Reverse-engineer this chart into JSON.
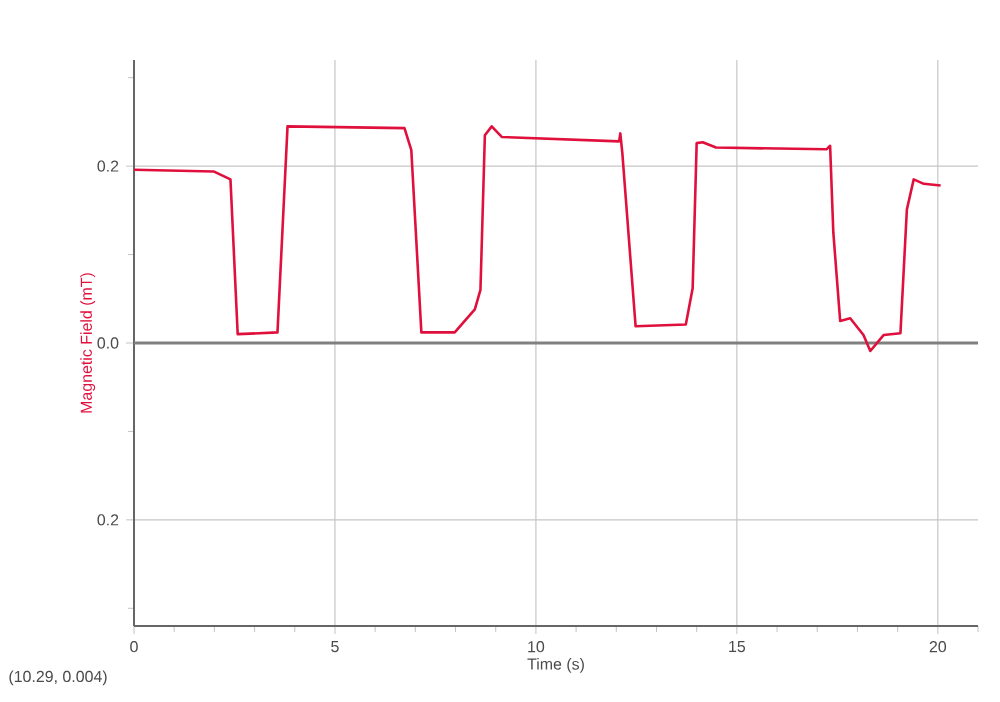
{
  "chart_data": {
    "type": "line",
    "xlabel": "Time (s)",
    "ylabel": "Magnetic Field (mT)",
    "annotations": [
      "(10.29, 0.004)"
    ],
    "xlim": [
      0,
      21
    ],
    "ylim": [
      -0.32,
      0.32
    ],
    "xticks": [
      0,
      {
        "value": 1,
        "label": null
      },
      {
        "value": 2,
        "label": null
      },
      {
        "value": 3,
        "label": null
      },
      {
        "value": 4,
        "label": null
      },
      5,
      {
        "value": 6,
        "label": null
      },
      {
        "value": 7,
        "label": null
      },
      {
        "value": 8,
        "label": null
      },
      {
        "value": 9,
        "label": null
      },
      10,
      {
        "value": 11,
        "label": null
      },
      {
        "value": 12,
        "label": null
      },
      {
        "value": 13,
        "label": null
      },
      {
        "value": 14,
        "label": null
      },
      15,
      {
        "value": 16,
        "label": null
      },
      {
        "value": 17,
        "label": null
      },
      {
        "value": 18,
        "label": null
      },
      {
        "value": 19,
        "label": null
      },
      20,
      {
        "value": 21,
        "label": null
      }
    ],
    "yticks": [
      {
        "value": -0.3,
        "label": null
      },
      {
        "value": -0.2,
        "label": "0.2"
      },
      {
        "value": -0.1,
        "label": null
      },
      {
        "value": 0,
        "label": "0.0"
      },
      {
        "value": 0.1,
        "label": null
      },
      0.2,
      {
        "value": 0.3,
        "label": null
      }
    ],
    "grid": true,
    "marker": "none",
    "line_style": "solid",
    "ref_lines": [
      {
        "axis": "y",
        "value": 0,
        "color": "#808080"
      }
    ],
    "series": [
      {
        "color": "#e0103c",
        "x": [
          0,
          1.98,
          2.4,
          2.58,
          3.57,
          3.82,
          6.73,
          6.9,
          7.15,
          7.98,
          8.48,
          8.62,
          8.73,
          8.9,
          9.15,
          12.07,
          12.1,
          12.15,
          12.48,
          13.73,
          13.9,
          14.0,
          14.15,
          14.48,
          17.23,
          17.32,
          17.4,
          17.57,
          17.82,
          18.15,
          18.32,
          18.65,
          19.07,
          19.23,
          19.4,
          19.65,
          20.07
        ],
        "values": [
          0.196,
          0.194,
          0.185,
          0.01,
          0.012,
          0.245,
          0.243,
          0.218,
          0.012,
          0.012,
          0.038,
          0.06,
          0.235,
          0.245,
          0.233,
          0.228,
          0.237,
          0.215,
          0.019,
          0.021,
          0.062,
          0.226,
          0.227,
          0.221,
          0.219,
          0.223,
          0.125,
          0.025,
          0.028,
          0.009,
          -0.009,
          0.009,
          0.011,
          0.151,
          0.185,
          0.18,
          0.178
        ]
      }
    ]
  }
}
